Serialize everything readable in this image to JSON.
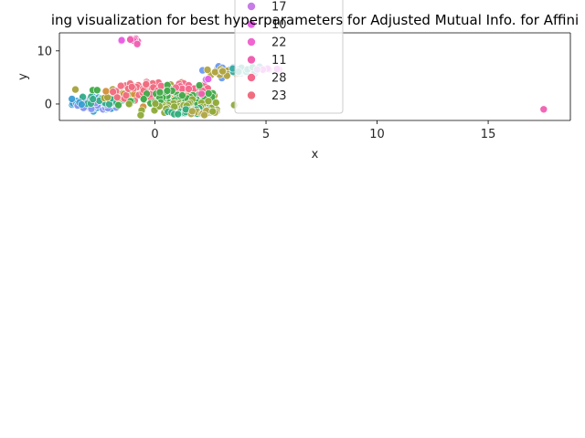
{
  "chart_data": {
    "type": "scatter",
    "title": "ing visualization for best hyperparameters for Adjusted Mutual Info. for Affini",
    "xlabel": "x",
    "ylabel": "y",
    "xlim": [
      -4.3,
      18.7
    ],
    "ylim": [
      -3.1,
      13.4
    ],
    "x_ticks": [
      0,
      5,
      10,
      15
    ],
    "y_ticks": [
      0,
      10
    ],
    "grid": false,
    "legend_position": "top-center (clipped)",
    "legend": [
      {
        "name": "17",
        "color": "#c77ce8"
      },
      {
        "name": "10",
        "color": "#e761e8"
      },
      {
        "name": "22",
        "color": "#f066d0"
      },
      {
        "name": "11",
        "color": "#f15fb1"
      },
      {
        "name": "28",
        "color": "#f36a8d"
      },
      {
        "name": "23",
        "color": "#f06d80"
      }
    ],
    "clusters": [
      {
        "name": "blue-left",
        "color": "#3a9ed4",
        "cx": -2.6,
        "cy": 0.2,
        "sx": 0.55,
        "sy": 0.6,
        "n": 70
      },
      {
        "name": "indigo-left",
        "color": "#8797f0",
        "cx": -2.7,
        "cy": -0.4,
        "sx": 0.45,
        "sy": 0.45,
        "n": 35
      },
      {
        "name": "teal-left",
        "color": "#36ad8a",
        "cx": -2.1,
        "cy": 0.8,
        "sx": 0.5,
        "sy": 0.5,
        "n": 30
      },
      {
        "name": "olive-center",
        "color": "#a7a23a",
        "cx": -0.1,
        "cy": 1.8,
        "sx": 1.0,
        "sy": 0.8,
        "n": 90
      },
      {
        "name": "orange-center",
        "color": "#d58f39",
        "cx": 0.4,
        "cy": 2.2,
        "sx": 0.9,
        "sy": 0.8,
        "n": 60
      },
      {
        "name": "pink-center",
        "color": "#f06d80",
        "cx": -0.6,
        "cy": 2.5,
        "sx": 0.8,
        "sy": 0.7,
        "n": 40
      },
      {
        "name": "rose-center",
        "color": "#f36a8d",
        "cx": 1.4,
        "cy": 2.9,
        "sx": 0.8,
        "sy": 0.6,
        "n": 30
      },
      {
        "name": "green-center",
        "color": "#42ab4a",
        "cx": 1.0,
        "cy": 0.6,
        "sx": 1.0,
        "sy": 0.9,
        "n": 70
      },
      {
        "name": "lime-low",
        "color": "#8fab3a",
        "cx": 1.4,
        "cy": -0.6,
        "sx": 0.9,
        "sy": 0.6,
        "n": 55
      },
      {
        "name": "teal-low",
        "color": "#33ae7d",
        "cx": 1.7,
        "cy": -1.4,
        "sx": 0.5,
        "sy": 0.25,
        "n": 25
      },
      {
        "name": "khaki-low",
        "color": "#b0a848",
        "cx": 2.2,
        "cy": -1.6,
        "sx": 0.4,
        "sy": 0.2,
        "n": 15
      },
      {
        "name": "blue-right",
        "color": "#6b9bf0",
        "cx": 3.3,
        "cy": 6.3,
        "sx": 0.5,
        "sy": 0.35,
        "n": 30
      },
      {
        "name": "olive-right",
        "color": "#b0a442",
        "cx": 3.0,
        "cy": 6.0,
        "sx": 0.4,
        "sy": 0.3,
        "n": 15
      },
      {
        "name": "cyan-right",
        "color": "#36ada4",
        "cx": 3.9,
        "cy": 6.4,
        "sx": 0.4,
        "sy": 0.3,
        "n": 15
      },
      {
        "name": "magenta-right",
        "color": "#e761e8",
        "cx": 5.0,
        "cy": 6.5,
        "sx": 0.4,
        "sy": 0.1,
        "n": 6
      },
      {
        "name": "pink-top",
        "color": "#f15fb1",
        "cx": -1.0,
        "cy": 11.9,
        "sx": 0.25,
        "sy": 0.25,
        "n": 8
      }
    ],
    "points": [
      {
        "x": 17.5,
        "y": -1.0,
        "color": "#f15fb1"
      },
      {
        "x": -3.4,
        "y": 0.3,
        "color": "#3a9ed4"
      },
      {
        "x": -3.3,
        "y": -0.1,
        "color": "#3a9ed4"
      },
      {
        "x": -2.8,
        "y": 2.6,
        "color": "#42ab4a"
      },
      {
        "x": -2.6,
        "y": 2.6,
        "color": "#42ab4a"
      },
      {
        "x": -0.4,
        "y": 3.7,
        "color": "#f06d80"
      },
      {
        "x": 2.0,
        "y": 3.5,
        "color": "#42ab4a"
      },
      {
        "x": 2.3,
        "y": 4.6,
        "color": "#c77ce8"
      },
      {
        "x": 2.4,
        "y": 4.7,
        "color": "#e761e8"
      },
      {
        "x": 2.1,
        "y": 1.9,
        "color": "#f15fb1"
      },
      {
        "x": 4.4,
        "y": 6.9,
        "color": "#36ad8a"
      },
      {
        "x": 4.6,
        "y": 6.5,
        "color": "#c77ce8"
      },
      {
        "x": 5.5,
        "y": 6.6,
        "color": "#e761e8"
      },
      {
        "x": -0.8,
        "y": 11.3,
        "color": "#f15fb1"
      },
      {
        "x": -1.5,
        "y": 12.0,
        "color": "#e761e8"
      },
      {
        "x": 2.7,
        "y": -1.6,
        "color": "#b0a848"
      },
      {
        "x": 2.6,
        "y": -1.4,
        "color": "#8fab3a"
      }
    ]
  }
}
